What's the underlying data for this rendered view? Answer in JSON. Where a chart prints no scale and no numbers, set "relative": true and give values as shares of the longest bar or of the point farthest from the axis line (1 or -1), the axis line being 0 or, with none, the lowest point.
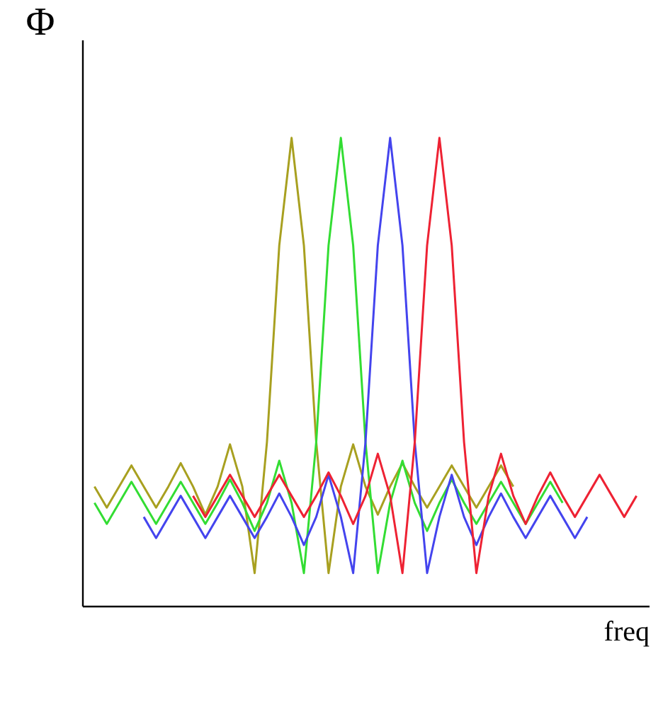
{
  "chart_data": {
    "type": "line",
    "xlabel": "freq",
    "ylabel": "Φ",
    "relative": true,
    "legend": false,
    "grid": false,
    "marker": "none",
    "line_style": "solid",
    "categories": [
      null,
      null,
      null,
      null,
      null,
      null,
      null,
      null,
      null,
      null,
      null,
      null,
      null,
      null,
      null,
      null,
      null,
      null,
      null,
      null,
      null,
      null,
      null,
      null,
      null,
      null,
      null,
      null,
      null,
      null,
      null,
      null,
      null,
      null,
      null,
      null,
      null,
      null,
      null,
      null,
      null,
      null,
      null,
      null,
      null
    ],
    "series": [
      {
        "color": "#a8a020",
        "values": [
          0.255,
          0.21,
          0.255,
          0.3,
          0.255,
          0.21,
          0.255,
          0.305,
          0.255,
          0.195,
          0.255,
          0.345,
          0.255,
          0.07,
          0.35,
          0.77,
          1,
          0.77,
          0.35,
          0.07,
          0.255,
          0.345,
          0.255,
          0.195,
          0.255,
          0.305,
          0.255,
          0.21,
          0.255,
          0.3,
          0.255,
          0.21,
          0.255,
          0.3,
          0.255,
          null,
          null,
          null,
          null,
          null,
          null,
          null,
          null,
          null,
          null
        ]
      },
      {
        "color": "#33dd33",
        "values": [
          0.22,
          0.175,
          0.22,
          0.265,
          0.22,
          0.175,
          0.22,
          0.265,
          0.22,
          0.175,
          0.22,
          0.27,
          0.22,
          0.16,
          0.22,
          0.31,
          0.22,
          0.07,
          0.35,
          0.77,
          1,
          0.77,
          0.35,
          0.07,
          0.22,
          0.31,
          0.22,
          0.16,
          0.22,
          0.27,
          0.22,
          0.175,
          0.22,
          0.265,
          0.22,
          0.175,
          0.22,
          0.265,
          0.22,
          null,
          null,
          null,
          null,
          null,
          null
        ]
      },
      {
        "color": "#4444ee",
        "values": [
          null,
          null,
          null,
          null,
          0.19,
          0.145,
          0.19,
          0.235,
          0.19,
          0.145,
          0.19,
          0.235,
          0.19,
          0.145,
          0.19,
          0.24,
          0.19,
          0.13,
          0.19,
          0.28,
          0.19,
          0.07,
          0.35,
          0.77,
          1,
          0.77,
          0.35,
          0.07,
          0.19,
          0.28,
          0.19,
          0.13,
          0.19,
          0.24,
          0.19,
          0.145,
          0.19,
          0.235,
          0.19,
          0.145,
          0.19,
          null,
          null,
          null,
          null
        ]
      },
      {
        "color": "#ee2233",
        "values": [
          null,
          null,
          null,
          null,
          null,
          null,
          null,
          null,
          0.235,
          0.19,
          0.235,
          0.28,
          0.235,
          0.19,
          0.235,
          0.28,
          0.235,
          0.19,
          0.235,
          0.285,
          0.235,
          0.175,
          0.235,
          0.325,
          0.235,
          0.07,
          0.35,
          0.77,
          1,
          0.77,
          0.35,
          0.07,
          0.235,
          0.325,
          0.235,
          0.175,
          0.235,
          0.285,
          0.235,
          0.19,
          0.235,
          0.28,
          0.235,
          0.19,
          0.235
        ]
      }
    ]
  }
}
